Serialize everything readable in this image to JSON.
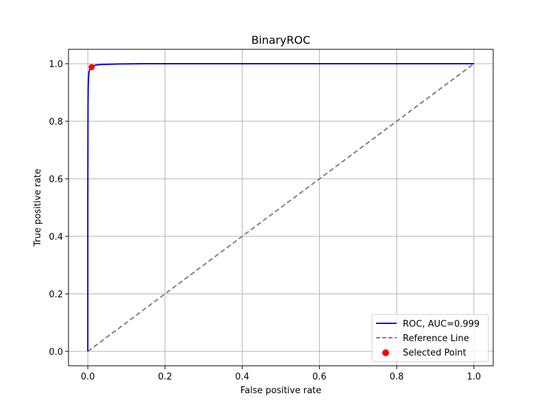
{
  "chart_data": {
    "type": "line",
    "title": "BinaryROC",
    "xlabel": "False positive rate",
    "ylabel": "True positive rate",
    "xlim": [
      -0.05,
      1.05
    ],
    "ylim": [
      -0.05,
      1.05
    ],
    "grid": true,
    "legend_position": "lower-right",
    "x_ticks": [
      0.0,
      0.2,
      0.4,
      0.6,
      0.8,
      1.0
    ],
    "y_ticks": [
      0.0,
      0.2,
      0.4,
      0.6,
      0.8,
      1.0
    ],
    "x_tick_labels": [
      "0.0",
      "0.2",
      "0.4",
      "0.6",
      "0.8",
      "1.0"
    ],
    "y_tick_labels": [
      "0.0",
      "0.2",
      "0.4",
      "0.6",
      "0.8",
      "1.0"
    ],
    "series": [
      {
        "name": "ROC, AUC=0.999",
        "style": "solid",
        "color": "#0000ff",
        "x": [
          0.0,
          0.0,
          0.0005,
          0.001,
          0.002,
          0.003,
          0.005,
          0.008,
          0.012,
          0.02,
          0.03,
          0.05,
          0.08,
          0.15,
          0.3,
          0.5,
          0.7,
          1.0
        ],
        "y": [
          0.0,
          0.5,
          0.85,
          0.92,
          0.955,
          0.97,
          0.98,
          0.987,
          0.991,
          0.995,
          0.997,
          0.998,
          0.999,
          1.0,
          1.0,
          1.0,
          1.0,
          1.0
        ]
      },
      {
        "name": "Reference Line",
        "style": "dashed",
        "color": "#808080",
        "x": [
          0.0,
          1.0
        ],
        "y": [
          0.0,
          1.0
        ]
      }
    ],
    "points": [
      {
        "name": "Selected Point",
        "color": "#ff0000",
        "x": 0.01,
        "y": 0.988
      }
    ]
  }
}
